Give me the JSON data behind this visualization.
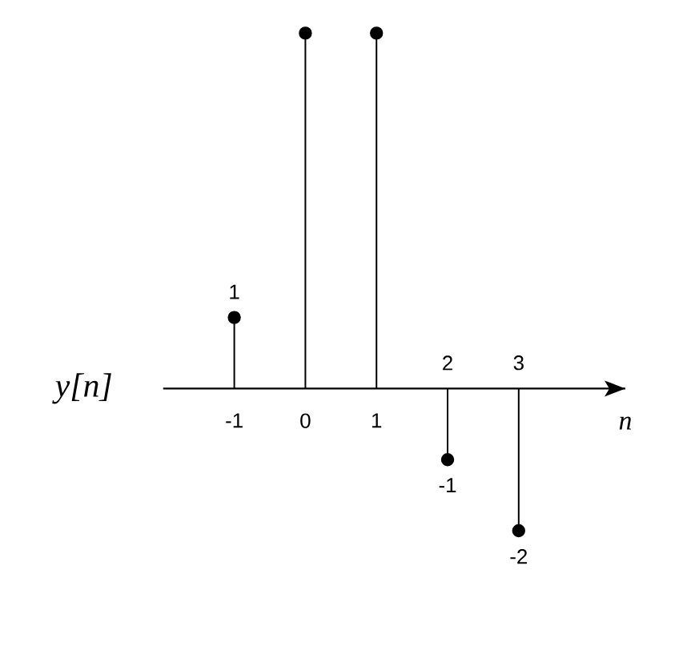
{
  "chart_data": {
    "type": "lollipop",
    "x": [
      -1,
      0,
      1,
      2,
      3
    ],
    "values": [
      1,
      5,
      5,
      -1,
      -2
    ],
    "value_labels": [
      "1",
      null,
      null,
      "-1",
      "-2"
    ],
    "color": "#000000",
    "marker": "circle",
    "xlim": [
      -2,
      4.5
    ],
    "xticks": [
      -1,
      0,
      1
    ],
    "annotations": [
      "2",
      "3"
    ],
    "tick_labels": "x",
    "xlabel": "n",
    "ylabel": "y[n]"
  }
}
